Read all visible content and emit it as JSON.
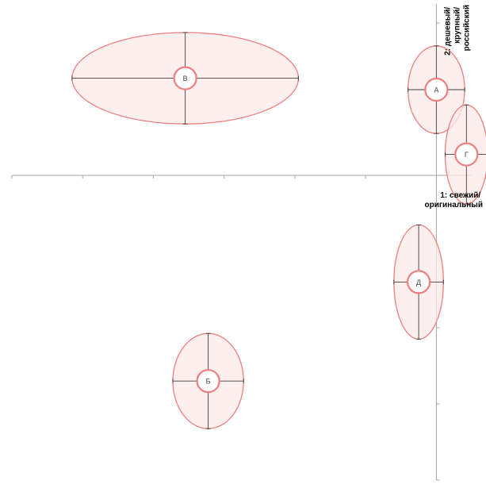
{
  "chart_data": {
    "type": "scatter",
    "xlabel_lines": [
      "1: свежий/",
      "оригинальный"
    ],
    "ylabel_lines": [
      "2: дешевый/",
      "крупный/",
      "российский"
    ],
    "xlim": [
      -12,
      1
    ],
    "ylim": [
      -8,
      4.5
    ],
    "grid": false,
    "points": [
      {
        "label": "А",
        "x": 0.0,
        "y": 2.25,
        "sx": 0.8,
        "sy": 1.15
      },
      {
        "label": "Б",
        "x": -6.45,
        "y": -5.4,
        "sx": 1.0,
        "sy": 1.25
      },
      {
        "label": "В",
        "x": -7.1,
        "y": 2.55,
        "sx": 3.2,
        "sy": 1.2
      },
      {
        "label": "Г",
        "x": 0.85,
        "y": 0.55,
        "sx": 0.6,
        "sy": 1.3
      },
      {
        "label": "Д",
        "x": -0.5,
        "y": -2.8,
        "sx": 0.7,
        "sy": 1.5
      }
    ],
    "colors": {
      "ellipse_stroke": "#f07f7f",
      "ellipse_fill": "#fde9e9",
      "error_bar": "#404040",
      "axis": "#a6a6a6"
    }
  }
}
